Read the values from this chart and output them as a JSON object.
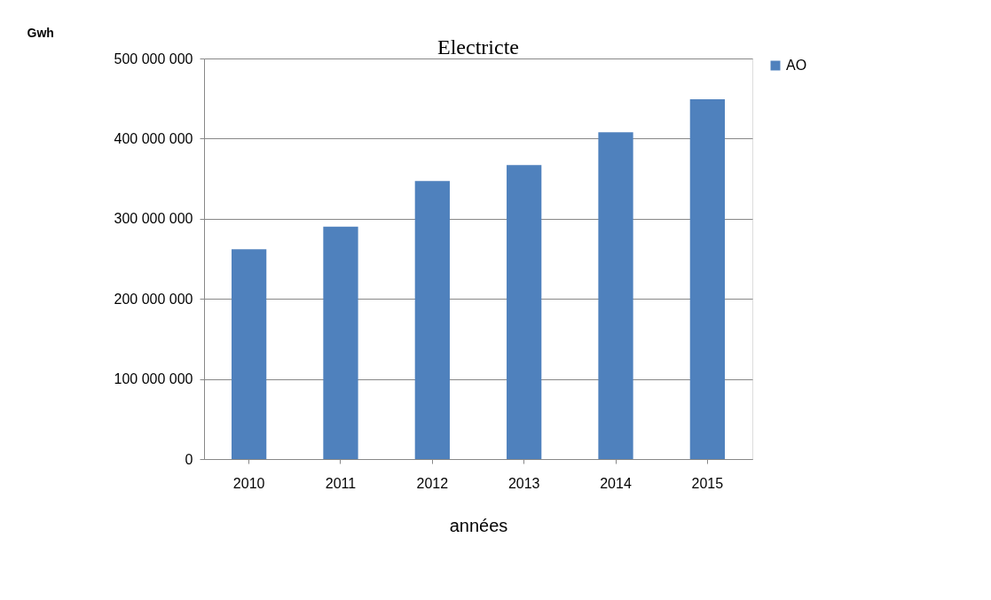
{
  "chart_data": {
    "type": "bar",
    "title": "Electricte",
    "ylabel": "Gwh",
    "xlabel": "années",
    "categories": [
      "2010",
      "2011",
      "2012",
      "2013",
      "2014",
      "2015"
    ],
    "series": [
      {
        "name": "AO",
        "color": "#4f81bd",
        "values": [
          262000000,
          290000000,
          347000000,
          367000000,
          408000000,
          449000000
        ]
      }
    ],
    "ylim": [
      0,
      500000000
    ],
    "yticks": [
      {
        "value": 0,
        "label": "0"
      },
      {
        "value": 100000000,
        "label": "100 000 000"
      },
      {
        "value": 200000000,
        "label": "200 000 000"
      },
      {
        "value": 300000000,
        "label": "300 000 000"
      },
      {
        "value": 400000000,
        "label": "400 000 000"
      },
      {
        "value": 500000000,
        "label": "500 000 000"
      }
    ],
    "grid": "y",
    "legend": "right"
  }
}
